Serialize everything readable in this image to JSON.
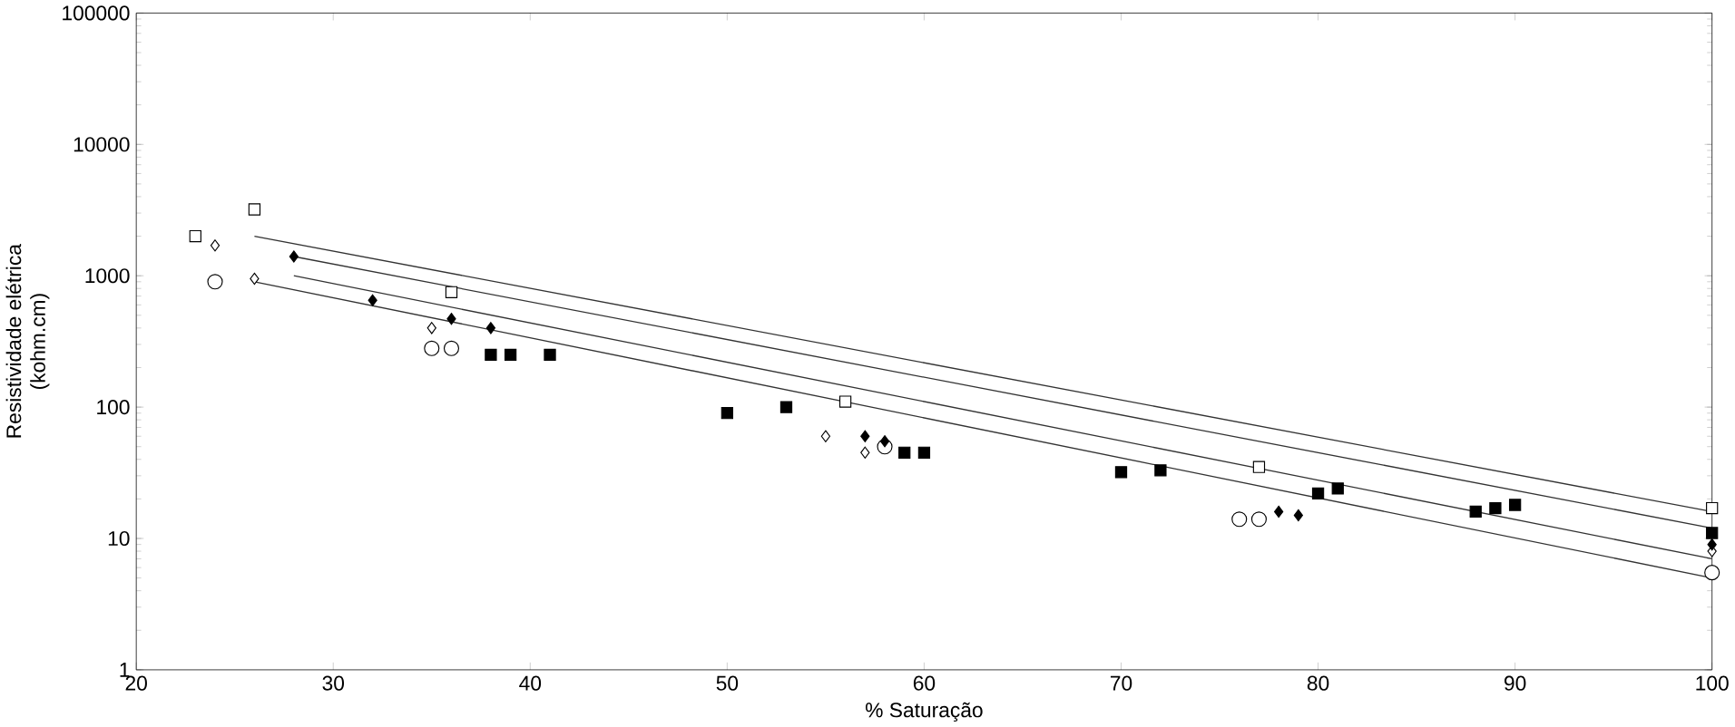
{
  "chart_data": {
    "type": "scatter",
    "xlabel": "% Saturação",
    "ylabel": "Resistividade elétrica\n(kohm.cm)",
    "log": "y",
    "grid": false,
    "xlim": [
      20,
      100
    ],
    "xticks": [
      20,
      30,
      40,
      50,
      60,
      70,
      80,
      90,
      100
    ],
    "ylim": [
      1,
      100000
    ],
    "yticks": [
      1,
      10,
      100,
      1000,
      10000,
      100000
    ],
    "series": [
      {
        "type": "line",
        "marker": "none",
        "color": "#333333",
        "x": [
          26,
          100
        ],
        "values": [
          2000,
          16
        ]
      },
      {
        "type": "line",
        "marker": "none",
        "color": "#333333",
        "x": [
          28,
          100
        ],
        "values": [
          1400,
          12
        ]
      },
      {
        "type": "line",
        "marker": "none",
        "color": "#333333",
        "x": [
          28,
          100
        ],
        "values": [
          1000,
          7
        ]
      },
      {
        "type": "line",
        "marker": "none",
        "color": "#333333",
        "x": [
          26,
          100
        ],
        "values": [
          900,
          5
        ]
      },
      {
        "marker": "square",
        "color": "#ffffff",
        "x": [
          23,
          26,
          36,
          56,
          77,
          100
        ],
        "values": [
          2000,
          3200,
          750,
          110,
          35,
          17
        ]
      },
      {
        "marker": "diamond",
        "color": "#ffffff",
        "x": [
          24,
          26,
          35,
          55,
          57,
          100
        ],
        "values": [
          1700,
          950,
          400,
          60,
          45,
          8
        ]
      },
      {
        "marker": "circle",
        "color": "#ffffff",
        "x": [
          24,
          35,
          36,
          58,
          76,
          77,
          100
        ],
        "values": [
          900,
          280,
          280,
          50,
          14,
          14,
          5.5
        ]
      },
      {
        "marker": "diamond",
        "color": "#000000",
        "x": [
          28,
          32,
          36,
          38,
          57,
          58,
          78,
          79,
          100
        ],
        "values": [
          1400,
          650,
          470,
          400,
          60,
          55,
          16,
          15,
          9
        ]
      },
      {
        "marker": "square",
        "color": "#000000",
        "x": [
          38,
          39,
          41,
          50,
          53,
          59,
          60,
          70,
          72,
          80,
          81,
          88,
          89,
          90,
          100
        ],
        "values": [
          250,
          250,
          250,
          90,
          100,
          45,
          45,
          32,
          33,
          22,
          24,
          16,
          17,
          18,
          11
        ]
      }
    ]
  }
}
